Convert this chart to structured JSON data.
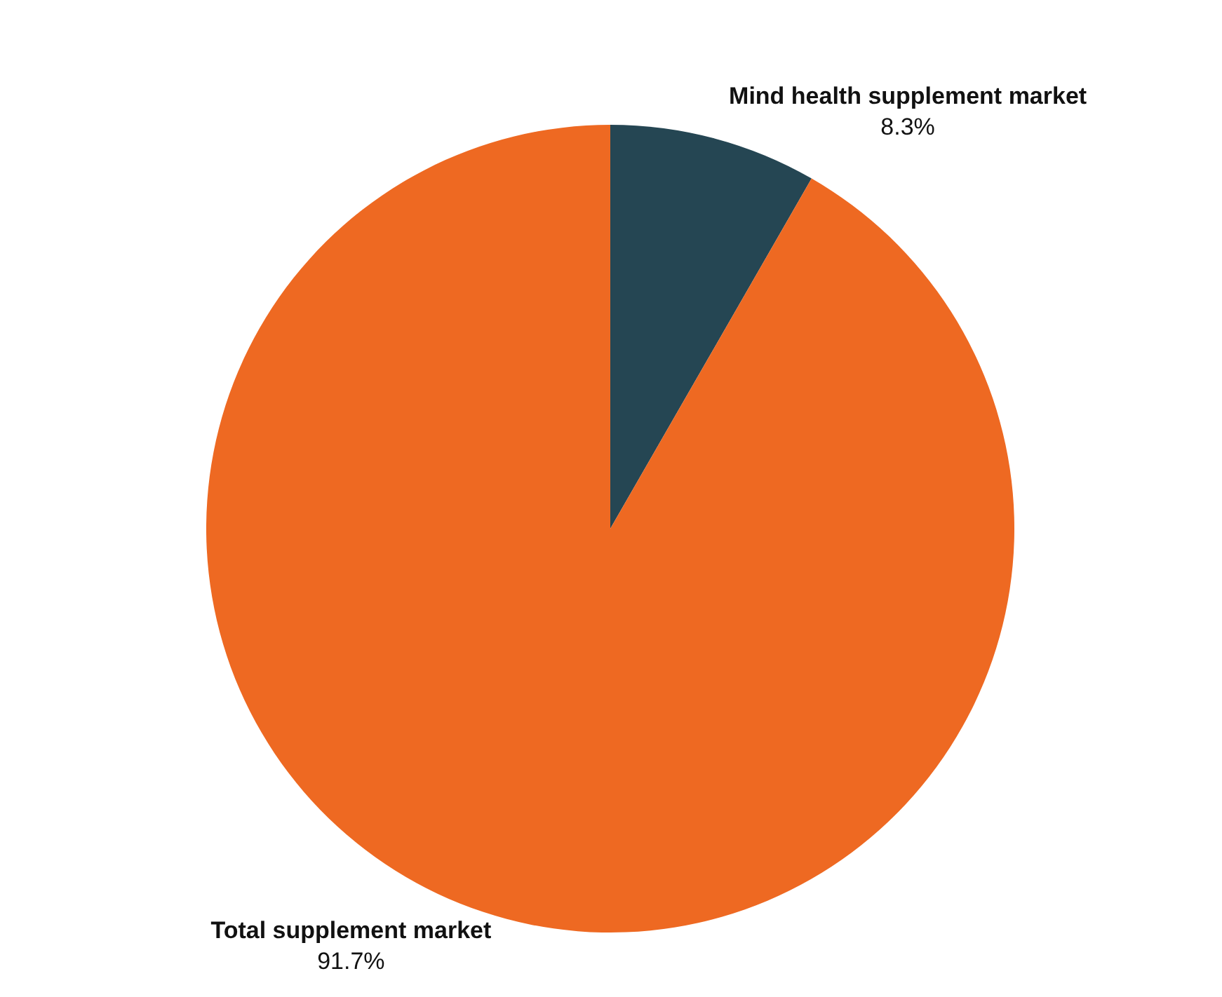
{
  "chart_data": {
    "type": "pie",
    "categories": [
      "Mind health supplement market",
      "Total supplement market"
    ],
    "values": [
      8.3,
      91.7
    ],
    "value_labels": [
      "8.3%",
      "91.7%"
    ],
    "colors": [
      "#254653",
      "#ee6922"
    ]
  }
}
